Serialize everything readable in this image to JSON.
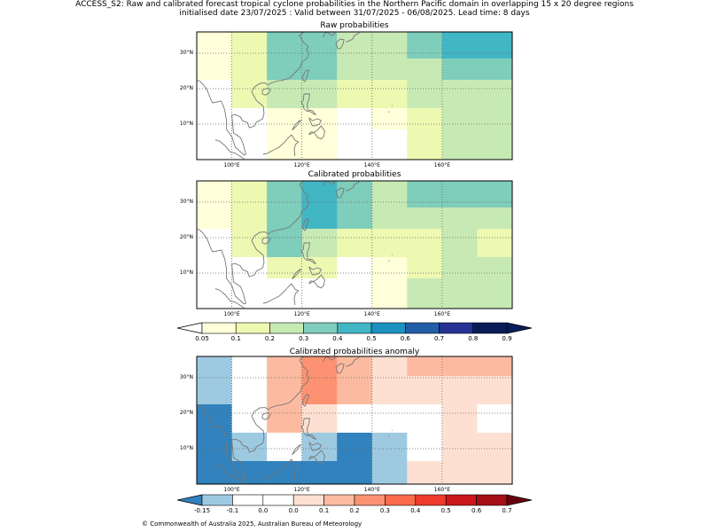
{
  "header": {
    "line1": "ACCESS_S2: Raw and calibrated forecast tropical cyclone probabilities in the Northern Pacific domain in overlapping 15 x 20 degree regions",
    "line2": "initialised date 23/07/2025 :  Valid between 31/07/2025 - 06/08/2025. Lead time: 8 days"
  },
  "footer": "© Commonwealth of Australia 2025, Australian Bureau of Meteorology",
  "map_axes": {
    "lon_range": [
      90,
      180
    ],
    "lat_range": [
      0,
      36
    ],
    "lon_ticks": [
      100,
      120,
      140,
      160
    ],
    "lon_tick_labels": [
      "100°E",
      "120°E",
      "140°E",
      "160°E"
    ],
    "lat_ticks": [
      10,
      20,
      30
    ],
    "lat_tick_labels": [
      "10°N",
      "20°N",
      "30°N"
    ],
    "grid": true
  },
  "panels": [
    {
      "title": "Raw probabilities",
      "scale": "prob",
      "rows_lat_bands": [
        [
          28.5,
          36
        ],
        [
          22.5,
          28.5
        ],
        [
          14.5,
          22.5
        ],
        [
          8.5,
          14.5
        ],
        [
          0,
          8.5
        ]
      ],
      "cols_lon_bands": [
        [
          90,
          100
        ],
        [
          100,
          110
        ],
        [
          110,
          120
        ],
        [
          120,
          130
        ],
        [
          130,
          140
        ],
        [
          140,
          150
        ],
        [
          150,
          160
        ],
        [
          160,
          170
        ],
        [
          170,
          180
        ]
      ],
      "cells": [
        [
          "#ffffd9",
          "#edf8b1",
          "#7fcdbb",
          "#7fcdbb",
          "#c7e9b4",
          "#c7e9b4",
          "#7fcdbb",
          "#41b6c4",
          "#41b6c4"
        ],
        [
          "#ffffd9",
          "#edf8b1",
          "#7fcdbb",
          "#7fcdbb",
          "#c7e9b4",
          "#c7e9b4",
          "#c7e9b4",
          "#7fcdbb",
          "#7fcdbb"
        ],
        [
          "#ffffff",
          "#edf8b1",
          "#c7e9b4",
          "#c7e9b4",
          "#edf8b1",
          "#edf8b1",
          "#c7e9b4",
          "#c7e9b4",
          "#c7e9b4"
        ],
        [
          "#ffffff",
          "#ffffff",
          "#ffffd9",
          "#ffffd9",
          "#ffffff",
          "#ffffd9",
          "#edf8b1",
          "#c7e9b4",
          "#c7e9b4"
        ],
        [
          "#ffffff",
          "#ffffff",
          "#ffffd9",
          "#ffffd9",
          "#ffffff",
          "#ffffff",
          "#edf8b1",
          "#c7e9b4",
          "#c7e9b4"
        ]
      ]
    },
    {
      "title": "Calibrated probabilities",
      "scale": "prob",
      "rows_lat_bands": [
        [
          28.5,
          36
        ],
        [
          22.5,
          28.5
        ],
        [
          14.5,
          22.5
        ],
        [
          8.5,
          14.5
        ],
        [
          0,
          8.5
        ]
      ],
      "cols_lon_bands": [
        [
          90,
          100
        ],
        [
          100,
          110
        ],
        [
          110,
          120
        ],
        [
          120,
          130
        ],
        [
          130,
          140
        ],
        [
          140,
          150
        ],
        [
          150,
          160
        ],
        [
          160,
          170
        ],
        [
          170,
          180
        ]
      ],
      "cells": [
        [
          "#ffffd9",
          "#edf8b1",
          "#7fcdbb",
          "#41b6c4",
          "#7fcdbb",
          "#c7e9b4",
          "#7fcdbb",
          "#7fcdbb",
          "#7fcdbb"
        ],
        [
          "#ffffd9",
          "#edf8b1",
          "#7fcdbb",
          "#41b6c4",
          "#7fcdbb",
          "#c7e9b4",
          "#c7e9b4",
          "#c7e9b4",
          "#c7e9b4"
        ],
        [
          "#ffffff",
          "#edf8b1",
          "#7fcdbb",
          "#c7e9b4",
          "#edf8b1",
          "#edf8b1",
          "#edf8b1",
          "#c7e9b4",
          "#edf8b1"
        ],
        [
          "#ffffff",
          "#ffffff",
          "#edf8b1",
          "#edf8b1",
          "#ffffff",
          "#ffffd9",
          "#edf8b1",
          "#c7e9b4",
          "#c7e9b4"
        ],
        [
          "#ffffff",
          "#ffffff",
          "#ffffff",
          "#ffffff",
          "#ffffff",
          "#ffffd9",
          "#c7e9b4",
          "#c7e9b4",
          "#c7e9b4"
        ]
      ]
    },
    {
      "title": "Calibrated probabilities anomaly",
      "scale": "anom",
      "rows_lat_bands": [
        [
          30.5,
          36
        ],
        [
          22.5,
          30.5
        ],
        [
          14.5,
          22.5
        ],
        [
          6.5,
          14.5
        ],
        [
          0,
          6.5
        ]
      ],
      "cols_lon_bands": [
        [
          90,
          100
        ],
        [
          100,
          110
        ],
        [
          110,
          120
        ],
        [
          120,
          130
        ],
        [
          130,
          140
        ],
        [
          140,
          150
        ],
        [
          150,
          160
        ],
        [
          160,
          170
        ],
        [
          170,
          180
        ]
      ],
      "cells": [
        [
          "#9ecae1",
          "#ffffff",
          "#fcbba1",
          "#fc9272",
          "#fcbba1",
          "#fee0d2",
          "#fcbba1",
          "#fcbba1",
          "#fcbba1"
        ],
        [
          "#9ecae1",
          "#ffffff",
          "#fcbba1",
          "#fc9272",
          "#fcbba1",
          "#fee0d2",
          "#fee0d2",
          "#fee0d2",
          "#fee0d2"
        ],
        [
          "#3182bd",
          "#ffffff",
          "#fcbba1",
          "#fee0d2",
          "#ffffff",
          "#ffffff",
          "#ffffff",
          "#fee0d2",
          "#ffffff"
        ],
        [
          "#3182bd",
          "#9ecae1",
          "#ffffff",
          "#9ecae1",
          "#3182bd",
          "#9ecae1",
          "#ffffff",
          "#fee0d2",
          "#fee0d2"
        ],
        [
          "#3182bd",
          "#3182bd",
          "#3182bd",
          "#3182bd",
          "#3182bd",
          "#9ecae1",
          "#fee0d2",
          "#fee0d2",
          "#fee0d2"
        ]
      ]
    }
  ],
  "colorbars": {
    "prob": {
      "under": "#ffffff",
      "over": "#081d58",
      "colors": [
        "#ffffd9",
        "#edf8b1",
        "#c7e9b4",
        "#7fcdbb",
        "#41b6c4",
        "#1d91c0",
        "#225ea8",
        "#253494",
        "#081d58"
      ],
      "labels": [
        "0.05",
        "0.1",
        "0.2",
        "0.3",
        "0.4",
        "0.5",
        "0.6",
        "0.7",
        "0.8",
        "0.9"
      ]
    },
    "anom": {
      "under": "#3182bd",
      "over": "#67000d",
      "colors": [
        "#9ecae1",
        "#ffffff",
        "#ffffff",
        "#fee0d2",
        "#fcbba1",
        "#fc9272",
        "#fb6a4a",
        "#ef3b2c",
        "#cb181d",
        "#a50f15"
      ],
      "labels": [
        "-0.15",
        "-0.1",
        "0.0",
        "0.0",
        "0.1",
        "0.2",
        "0.3",
        "0.4",
        "0.5",
        "0.6",
        "0.7"
      ]
    }
  }
}
